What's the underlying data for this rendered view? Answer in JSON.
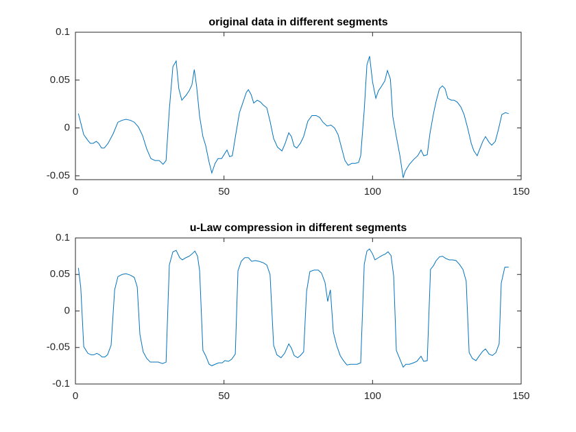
{
  "chart_data": [
    {
      "type": "line",
      "title": "original data in different segments",
      "color": "#0072bd",
      "xlim": [
        0,
        150
      ],
      "xticks": [
        0,
        50,
        100,
        150
      ],
      "ylim": [
        -0.054,
        0.1
      ],
      "yticks": [
        -0.05,
        0,
        0.05,
        0.1
      ],
      "x": [
        1,
        2.8,
        4.2,
        5,
        6,
        7,
        7.8,
        8.8,
        9.7,
        11,
        12.7,
        14.3,
        15.7,
        17,
        18.5,
        19.8,
        21.2,
        22.6,
        24,
        25.4,
        26.8,
        28.2,
        29.5,
        30.5,
        31.6,
        32.8,
        33.9,
        34.8,
        35.8,
        37.2,
        38.3,
        39.2,
        40,
        40.8,
        41.8,
        42.9,
        43.8,
        45,
        45.9,
        47,
        48,
        49.2,
        50,
        51,
        51.9,
        52.8,
        54,
        55.2,
        56.3,
        57.5,
        58.2,
        59.1,
        60,
        61.2,
        62.3,
        63.2,
        64.4,
        65.5,
        66.7,
        68,
        69.5,
        70.6,
        71.8,
        72.7,
        73.6,
        74.5,
        75.7,
        76.8,
        78.2,
        79.6,
        81,
        82.2,
        83.3,
        84.7,
        86,
        87.2,
        88.4,
        89.5,
        90.7,
        91.8,
        93,
        94.2,
        95.3,
        96,
        97.2,
        98.1,
        99,
        100,
        101.1,
        102,
        102.9,
        104.1,
        105,
        106,
        106.8,
        108,
        109.2,
        110.3,
        111,
        112.4,
        113.8,
        115.2,
        116.3,
        117.2,
        118.4,
        119.3,
        120.5,
        121.4,
        122.5,
        123.5,
        124.4,
        125.3,
        126.5,
        127.4,
        128.5,
        129.7,
        130.8,
        132,
        133.2,
        134.1,
        135.2,
        136.2,
        137.1,
        138,
        139.2,
        140.1,
        141.3,
        142.4,
        143.5,
        144.7,
        145.8
      ],
      "values": [
        0.015,
        -0.007,
        -0.013,
        -0.016,
        -0.016,
        -0.014,
        -0.016,
        -0.021,
        -0.021,
        -0.016,
        -0.006,
        0.006,
        0.008,
        0.009,
        0.008,
        0.006,
        0.001,
        -0.008,
        -0.022,
        -0.032,
        -0.034,
        -0.034,
        -0.038,
        -0.034,
        0.019,
        0.064,
        0.07,
        0.041,
        0.029,
        0.034,
        0.039,
        0.045,
        0.061,
        0.043,
        0.012,
        -0.009,
        -0.018,
        -0.036,
        -0.047,
        -0.037,
        -0.032,
        -0.032,
        -0.028,
        -0.023,
        -0.03,
        -0.029,
        -0.006,
        0.016,
        0.026,
        0.037,
        0.04,
        0.035,
        0.026,
        0.029,
        0.027,
        0.024,
        0.021,
        0.007,
        -0.011,
        -0.02,
        -0.024,
        -0.016,
        -0.005,
        -0.009,
        -0.019,
        -0.021,
        -0.016,
        -0.009,
        0.007,
        0.013,
        0.013,
        0.011,
        0.006,
        0.002,
        0.003,
        0,
        -0.007,
        -0.02,
        -0.034,
        -0.039,
        -0.037,
        -0.037,
        -0.036,
        -0.029,
        0.019,
        0.066,
        0.075,
        0.048,
        0.031,
        0.039,
        0.043,
        0.049,
        0.06,
        0.051,
        0.012,
        -0.009,
        -0.029,
        -0.052,
        -0.045,
        -0.038,
        -0.033,
        -0.029,
        -0.023,
        -0.029,
        -0.028,
        -0.006,
        0.015,
        0.028,
        0.041,
        0.044,
        0.041,
        0.031,
        0.029,
        0.029,
        0.027,
        0.022,
        0.014,
        0,
        -0.016,
        -0.024,
        -0.029,
        -0.021,
        -0.014,
        -0.009,
        -0.015,
        -0.018,
        -0.014,
        -0.001,
        0.014,
        0.016,
        0.015
      ]
    },
    {
      "type": "line",
      "title": "u-Law compression in different segments",
      "color": "#0072bd",
      "xlim": [
        0,
        150
      ],
      "xticks": [
        0,
        50,
        100,
        150
      ],
      "ylim": [
        -0.1,
        0.1
      ],
      "yticks": [
        -0.1,
        -0.05,
        0,
        0.05,
        0.1
      ],
      "x": [
        1,
        1.8,
        2.8,
        4.2,
        5.3,
        6.2,
        7.2,
        8.1,
        9,
        9.9,
        10.8,
        12,
        13.2,
        14.3,
        15.7,
        17,
        18.5,
        19.8,
        20.8,
        21.7,
        22.8,
        24,
        25.2,
        26.5,
        27.9,
        29.3,
        30.5,
        31.6,
        32.8,
        33.9,
        35.1,
        36,
        37.2,
        38.3,
        39.2,
        40.2,
        41.1,
        41.8,
        42.9,
        43.8,
        45,
        45.9,
        47,
        48.2,
        49.4,
        50.3,
        51.5,
        52.6,
        53.8,
        54.7,
        55.8,
        57,
        58.2,
        59.3,
        60.5,
        61.8,
        63.2,
        64.4,
        65.5,
        66.7,
        67.8,
        69.2,
        70.4,
        71.8,
        72.7,
        73.6,
        74.8,
        75.7,
        76.8,
        77.8,
        78.9,
        80.3,
        81.7,
        82.8,
        84,
        84.9,
        85.8,
        86.8,
        87.9,
        89.1,
        90.2,
        91.4,
        92.5,
        93.7,
        94.8,
        96,
        97.2,
        98.1,
        99,
        100,
        100.8,
        102,
        103.2,
        104.3,
        105.2,
        106.2,
        107.1,
        108,
        109.2,
        110.3,
        111.2,
        112.4,
        113.8,
        114.9,
        116.3,
        117.2,
        118.4,
        119.5,
        120.5,
        121.4,
        122.5,
        123.5,
        124.6,
        125.8,
        126.9,
        128.1,
        129.2,
        130.4,
        131.5,
        132.5,
        133.6,
        134.8,
        136,
        137.1,
        138,
        139.2,
        140.3,
        141.5,
        142.6,
        143.3,
        144.5,
        145.8
      ],
      "values": [
        0.059,
        0.032,
        -0.049,
        -0.058,
        -0.06,
        -0.06,
        -0.058,
        -0.06,
        -0.063,
        -0.063,
        -0.06,
        -0.047,
        0.029,
        0.047,
        0.05,
        0.051,
        0.049,
        0.046,
        0.033,
        -0.032,
        -0.056,
        -0.065,
        -0.07,
        -0.07,
        -0.07,
        -0.072,
        -0.07,
        0.063,
        0.081,
        0.083,
        0.073,
        0.07,
        0.073,
        0.075,
        0.078,
        0.082,
        0.075,
        0.055,
        -0.054,
        -0.061,
        -0.073,
        -0.075,
        -0.073,
        -0.071,
        -0.071,
        -0.068,
        -0.069,
        -0.066,
        -0.059,
        0.055,
        0.068,
        0.073,
        0.073,
        0.068,
        0.069,
        0.068,
        0.066,
        0.063,
        0.05,
        -0.047,
        -0.06,
        -0.064,
        -0.058,
        -0.045,
        -0.051,
        -0.061,
        -0.064,
        -0.061,
        -0.056,
        0.027,
        0.054,
        0.056,
        0.056,
        0.052,
        0.039,
        0.013,
        0.029,
        -0.029,
        -0.047,
        -0.061,
        -0.068,
        -0.074,
        -0.073,
        -0.073,
        -0.073,
        -0.071,
        0.064,
        0.082,
        0.085,
        0.078,
        0.07,
        0.073,
        0.076,
        0.078,
        0.081,
        0.076,
        0.048,
        -0.054,
        -0.066,
        -0.077,
        -0.073,
        -0.073,
        -0.071,
        -0.069,
        -0.062,
        -0.069,
        -0.068,
        0.057,
        0.062,
        0.069,
        0.074,
        0.075,
        0.072,
        0.07,
        0.07,
        0.069,
        0.064,
        0.057,
        0.041,
        -0.057,
        -0.065,
        -0.068,
        -0.061,
        -0.055,
        -0.052,
        -0.059,
        -0.061,
        -0.057,
        -0.045,
        0.038,
        0.06,
        0.06
      ]
    }
  ]
}
